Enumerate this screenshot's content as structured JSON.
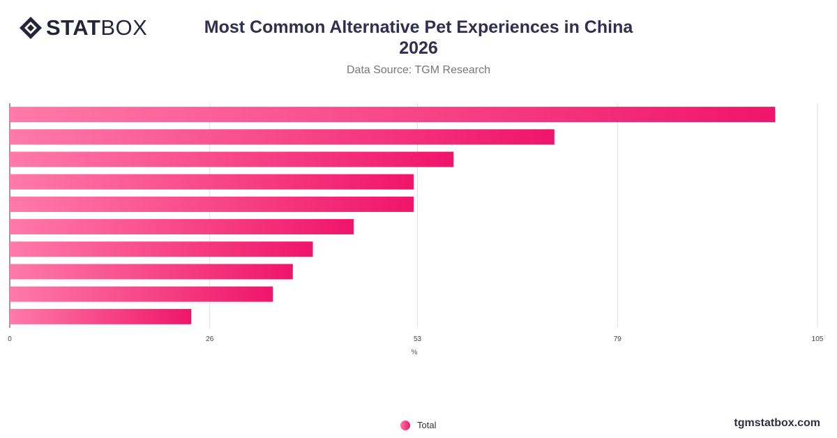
{
  "logo": {
    "text_bold": "STAT",
    "text_light": "BOX"
  },
  "header": {
    "title_line1": "Most Common Alternative Pet Experiences in China",
    "title_line2": "2026",
    "subtitle": "Data Source: TGM Research"
  },
  "legend": {
    "label": "Total"
  },
  "footer": {
    "url": "tgmstatbox.com"
  },
  "colors": {
    "bar_start": "#ff7aa8",
    "bar_end": "#f0156a",
    "grid": "#e0e0e0",
    "axis": "#333333"
  },
  "chart_data": {
    "type": "bar",
    "orientation": "horizontal",
    "title": "Most Common Alternative Pet Experiences in China 2026",
    "xlabel": "%",
    "xlim": [
      0,
      105
    ],
    "x_ticks": [
      0,
      26,
      53,
      79,
      105
    ],
    "categories": [
      "",
      "",
      "",
      "",
      "",
      "",
      "",
      "",
      "",
      ""
    ],
    "series": [
      {
        "name": "Total",
        "values": [
          99.5,
          70.8,
          57.7,
          52.5,
          52.5,
          44.7,
          39.4,
          36.8,
          34.2,
          23.6
        ]
      }
    ],
    "grid": true,
    "legend_position": "bottom"
  }
}
